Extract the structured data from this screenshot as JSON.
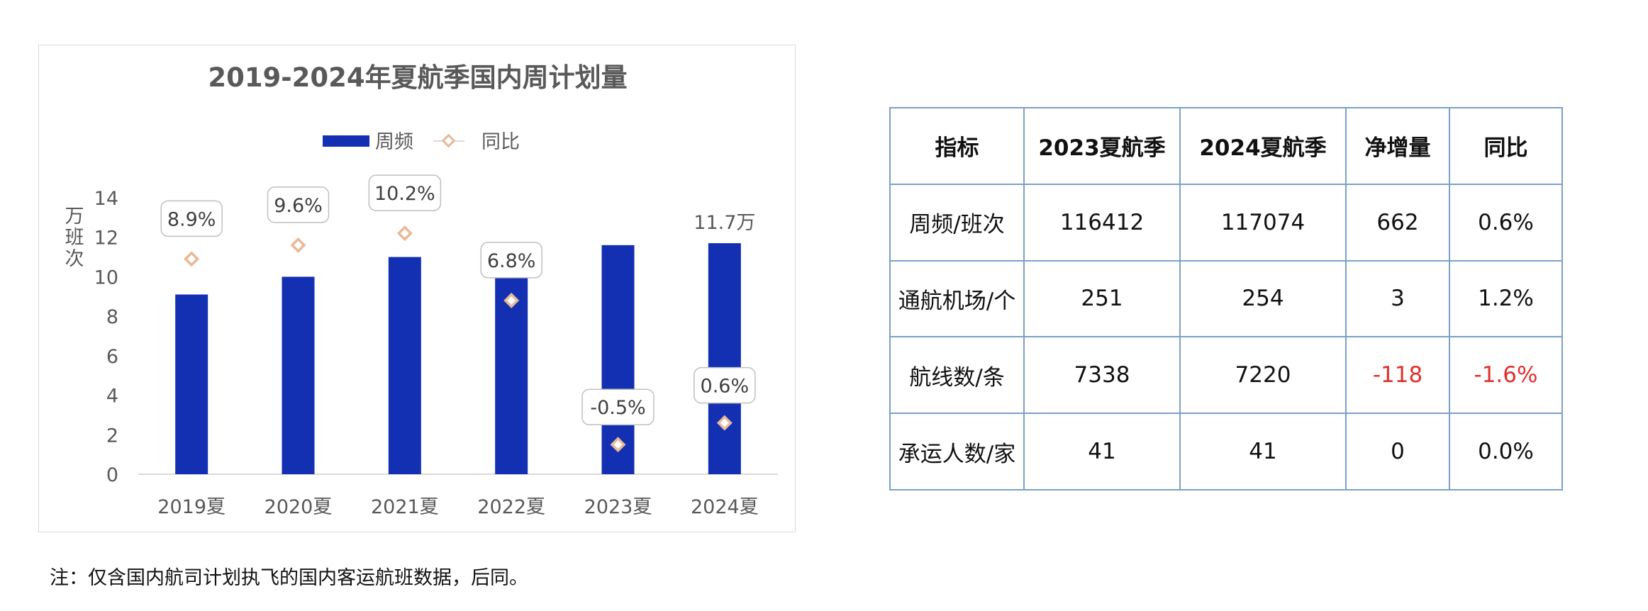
{
  "chart_data": {
    "type": "bar",
    "title": "2019-2024年夏航季国内周计划量",
    "ylabel": "万班次",
    "categories": [
      "2019夏",
      "2020夏",
      "2021夏",
      "2022夏",
      "2023夏",
      "2024夏"
    ],
    "ylim": [
      0,
      14
    ],
    "yticks": [
      0,
      2,
      4,
      6,
      8,
      10,
      12,
      14
    ],
    "legend_position": "top",
    "series": [
      {
        "name": "周频",
        "type": "bar",
        "color": "#1330b3",
        "values": [
          9.1,
          10.0,
          11.0,
          11.7,
          11.6,
          11.7
        ]
      },
      {
        "name": "同比",
        "type": "scatter",
        "color": "#e8b996",
        "values": [
          8.9,
          9.6,
          10.2,
          6.8,
          -0.5,
          0.6
        ],
        "y_plot_position": [
          10.9,
          11.6,
          12.2,
          8.8,
          1.5,
          2.6
        ],
        "labels": [
          "8.9%",
          "9.6%",
          "10.2%",
          "6.8%",
          "-0.5%",
          "0.6%"
        ]
      }
    ],
    "annotations": [
      {
        "category": "2024夏",
        "text": "11.7万"
      }
    ]
  },
  "table": {
    "headers": [
      "指标",
      "2023夏航季",
      "2024夏航季",
      "净增量",
      "同比"
    ],
    "rows": [
      [
        "周频/班次",
        "116412",
        "117074",
        "662",
        "0.6%"
      ],
      [
        "通航机场/个",
        "251",
        "254",
        "3",
        "1.2%"
      ],
      [
        "航线数/条",
        "7338",
        "7220",
        "-118",
        "-1.6%"
      ],
      [
        "承运人数/家",
        "41",
        "41",
        "0",
        "0.0%"
      ]
    ],
    "negative_color": "#e0302c",
    "border_color": "#7ba0c9"
  },
  "footnote": "注：仅含国内航司计划执飞的国内客运航班数据，后同。"
}
